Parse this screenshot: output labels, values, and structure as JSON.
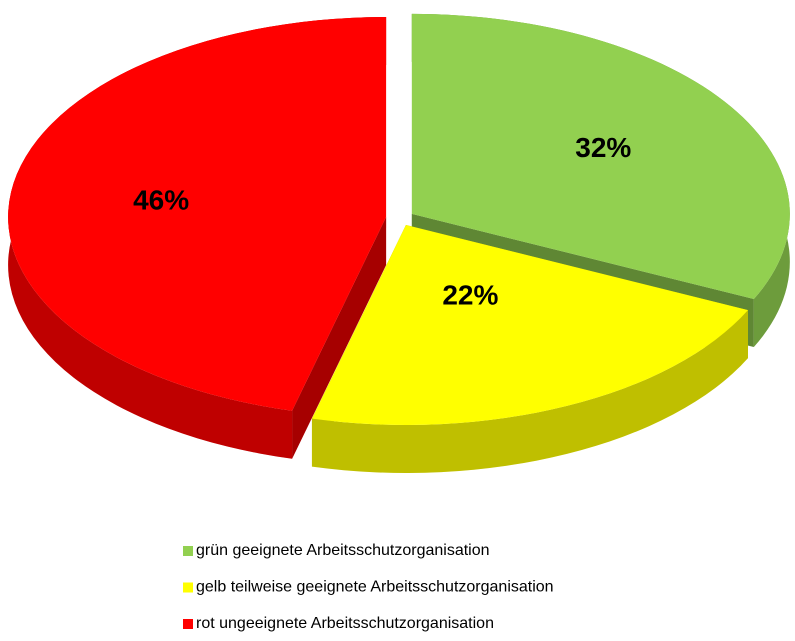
{
  "chart_data": {
    "type": "pie",
    "categories": [
      "grün geeignete Arbeitsschutzorganisation",
      "gelb teilweise geeignete Arbeitsschutzorganisation",
      "rot ungeeignete Arbeitsschutzorganisation"
    ],
    "values": [
      32,
      22,
      46
    ],
    "value_labels": [
      "32%",
      "22%",
      "46%"
    ],
    "colors": [
      "#92d050",
      "#ffff00",
      "#ff0000"
    ],
    "legend": "bottom"
  }
}
